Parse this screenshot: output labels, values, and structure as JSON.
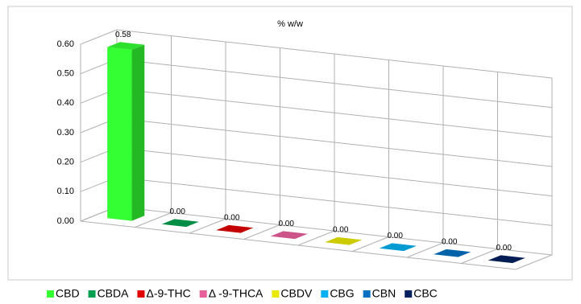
{
  "chart_data": {
    "type": "bar3d",
    "title": "% w/w",
    "ylim": [
      0,
      0.6
    ],
    "yticks": [
      {
        "value": 0,
        "label": "0.00"
      },
      {
        "value": 0.1,
        "label": "0.10"
      },
      {
        "value": 0.2,
        "label": "0.20"
      },
      {
        "value": 0.3,
        "label": "0.30"
      },
      {
        "value": 0.4,
        "label": "0.40"
      },
      {
        "value": 0.5,
        "label": "0.50"
      },
      {
        "value": 0.6,
        "label": "0.60"
      }
    ],
    "grid": true,
    "legend": "bottom",
    "series": [
      {
        "name": "CBD",
        "color": "#33ff33",
        "values": [
          0.58
        ],
        "value_labels": [
          "0.58"
        ]
      },
      {
        "name": "CBDA",
        "color": "#00a050",
        "values": [
          0
        ],
        "value_labels": [
          "0.00"
        ]
      },
      {
        "name": "Δ-9-THC",
        "color": "#e00000",
        "values": [
          0
        ],
        "value_labels": [
          "0.00"
        ]
      },
      {
        "name": "Δ -9-THCA",
        "color": "#e8609a",
        "values": [
          0
        ],
        "value_labels": [
          "0.00"
        ]
      },
      {
        "name": "CBDV",
        "color": "#e8e800",
        "values": [
          0
        ],
        "value_labels": [
          "0.00"
        ]
      },
      {
        "name": "CBG",
        "color": "#00b0f0",
        "values": [
          0
        ],
        "value_labels": [
          "0.00"
        ]
      },
      {
        "name": "CBN",
        "color": "#0070c0",
        "values": [
          0
        ],
        "value_labels": [
          "0.00"
        ]
      },
      {
        "name": "CBC",
        "color": "#002060",
        "values": [
          0
        ],
        "value_labels": [
          "0.00"
        ]
      }
    ]
  }
}
